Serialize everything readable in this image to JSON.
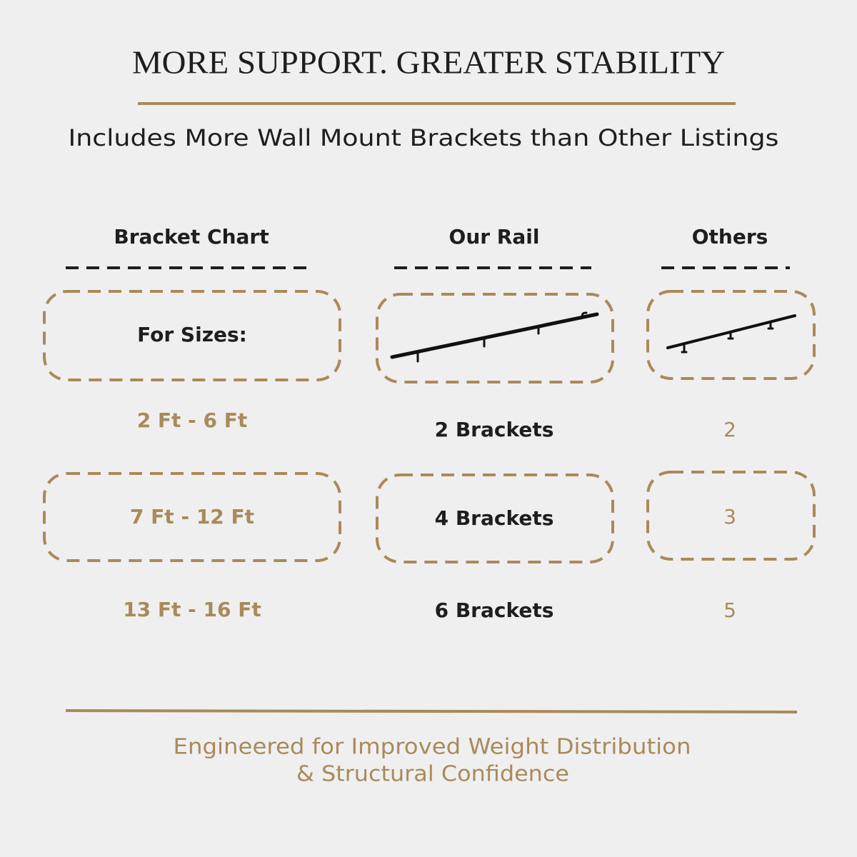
{
  "header": {
    "title": "MORE SUPPORT. GREATER STABILITY",
    "subtitle": "Includes More Wall Mount Brackets than Other Listings"
  },
  "table": {
    "headers": [
      "Bracket Chart",
      "Our Rail",
      "Others"
    ],
    "rows": [
      [
        "For Sizes:",
        null,
        null
      ],
      [
        "2 Ft - 6 Ft",
        "2 Brackets",
        2
      ],
      [
        "7 Ft - 12 Ft",
        "4 Brackets",
        3
      ],
      [
        "13 Ft - 16 Ft",
        "6 Brackets",
        5
      ]
    ]
  },
  "footer": {
    "lines": [
      "Engineered for Improved Weight Distribution",
      "& Structural Confidence"
    ]
  }
}
